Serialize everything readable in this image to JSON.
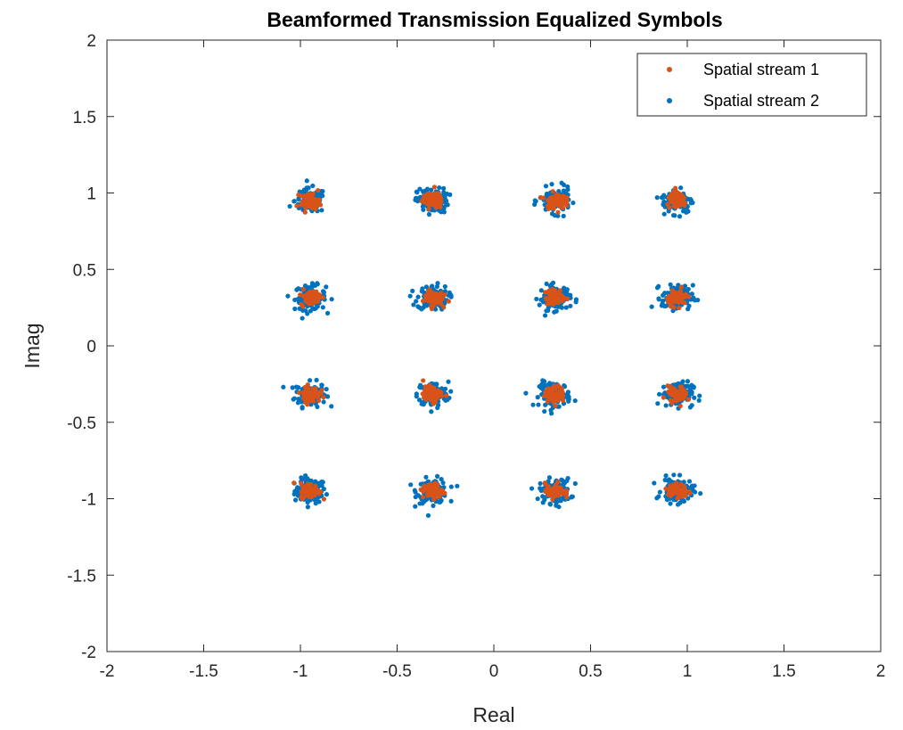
{
  "chart_data": {
    "type": "scatter",
    "title": "Beamformed Transmission Equalized Symbols",
    "xlabel": "Real",
    "ylabel": "Imag",
    "xlim": [
      -2,
      2
    ],
    "ylim": [
      -2,
      2
    ],
    "xticks": [
      -2,
      -1.5,
      -1,
      -0.5,
      0,
      0.5,
      1,
      1.5,
      2
    ],
    "yticks": [
      -2,
      -1.5,
      -1,
      -0.5,
      0,
      0.5,
      1,
      1.5,
      2
    ],
    "xtick_labels": [
      "-2",
      "-1.5",
      "-1",
      "-0.5",
      "0",
      "0.5",
      "1",
      "1.5",
      "2"
    ],
    "ytick_labels": [
      "-2",
      "-1.5",
      "-1",
      "-0.5",
      "0",
      "0.5",
      "1",
      "1.5",
      "2"
    ],
    "grid": false,
    "legend_position": "top-right",
    "series": [
      {
        "name": "Spatial stream 1",
        "color": "#D95319",
        "marker": "dot",
        "constellation_real": [
          -0.949,
          -0.316,
          0.316,
          0.949
        ],
        "constellation_imag": [
          -0.949,
          -0.316,
          0.316,
          0.949
        ],
        "spread": 0.025
      },
      {
        "name": "Spatial stream 2",
        "color": "#0072BD",
        "marker": "dot",
        "constellation_real": [
          -0.949,
          -0.316,
          0.316,
          0.949
        ],
        "constellation_imag": [
          -0.949,
          -0.316,
          0.316,
          0.949
        ],
        "spread": 0.04
      }
    ]
  }
}
